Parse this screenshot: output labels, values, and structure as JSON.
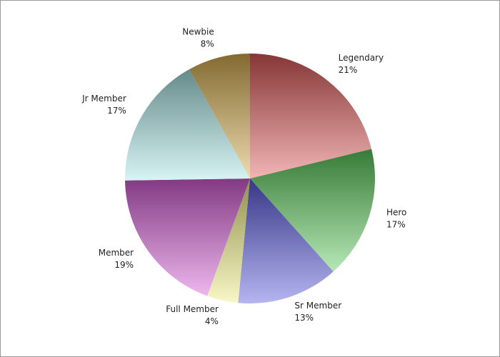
{
  "chart_data": {
    "type": "pie",
    "categories": [
      "Legendary",
      "Hero",
      "Sr Member",
      "Full Member",
      "Member",
      "Jr Member",
      "Newbie"
    ],
    "values": [
      21,
      17,
      13,
      4,
      19,
      17,
      8
    ],
    "value_labels": [
      "21%",
      "17%",
      "13%",
      "4%",
      "19%",
      "17%",
      "8%"
    ],
    "colors": [
      "#e05a5a",
      "#5ccc5c",
      "#5a5ae0",
      "#f0ee80",
      "#d860d8",
      "#a8e6e6",
      "#d8b050"
    ]
  }
}
